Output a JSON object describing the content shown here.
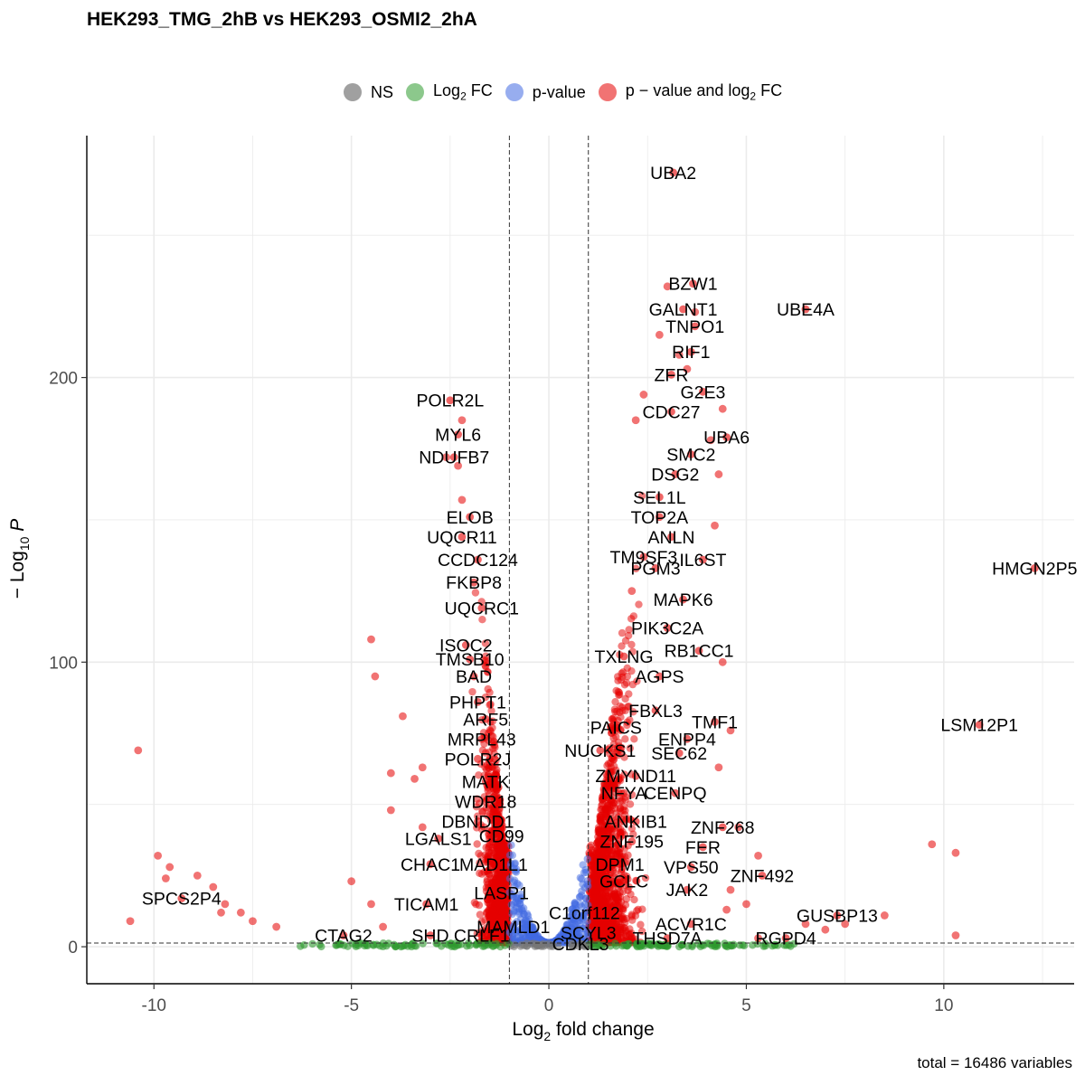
{
  "header": {
    "title": "HEK293_TMG_2hB vs HEK293_OSMI2_2hA",
    "footer": "total = 16486 variables"
  },
  "legend": {
    "items": [
      {
        "label": "NS",
        "color": "#777777"
      },
      {
        "label": "Log",
        "sub": "2",
        "suffix": " FC",
        "color": "#2e9a2e"
      },
      {
        "label": "p-value",
        "color": "#4169e1"
      },
      {
        "label": "p − value and log",
        "sub": "2",
        "suffix": " FC",
        "color": "#e60000"
      }
    ]
  },
  "chart_data": {
    "type": "scatter",
    "title": "HEK293_TMG_2hB vs HEK293_OSMI2_2hA",
    "xlabel": "Log2 fold change",
    "ylabel": "−Log10 P",
    "xlim": [
      -11.7,
      13.3
    ],
    "ylim": [
      -13,
      285
    ],
    "x_ticks": [
      -10,
      -5,
      0,
      5,
      10
    ],
    "y_ticks": [
      0,
      100,
      200
    ],
    "fc_cutoff": 1.0,
    "p_cutoff_y": 1.3,
    "grid": true,
    "legend_position": "top",
    "colors": {
      "NS": "#777777",
      "Log2 FC": "#2e9a2e",
      "p-value": "#4169e1",
      "p - value and log2 FC": "#e60000"
    },
    "labeled_points": [
      {
        "label": "UBA2",
        "x": 3.15,
        "y": 272
      },
      {
        "label": "BZW1",
        "x": 3.65,
        "y": 233
      },
      {
        "label": "GALNT1",
        "x": 3.4,
        "y": 224
      },
      {
        "label": "UBE4A",
        "x": 6.5,
        "y": 224
      },
      {
        "label": "TNPO1",
        "x": 3.7,
        "y": 218
      },
      {
        "label": "RIF1",
        "x": 3.6,
        "y": 209
      },
      {
        "label": "ZFR",
        "x": 3.1,
        "y": 201
      },
      {
        "label": "G2E3",
        "x": 3.9,
        "y": 195
      },
      {
        "label": "POLR2L",
        "x": -2.5,
        "y": 192
      },
      {
        "label": "CDC27",
        "x": 3.1,
        "y": 188
      },
      {
        "label": "UBA6",
        "x": 4.5,
        "y": 179
      },
      {
        "label": "MYL6",
        "x": -2.3,
        "y": 180
      },
      {
        "label": "NDUFB7",
        "x": -2.4,
        "y": 172
      },
      {
        "label": "SMC2",
        "x": 3.6,
        "y": 173
      },
      {
        "label": "DSG2",
        "x": 3.2,
        "y": 166
      },
      {
        "label": "SEL1L",
        "x": 2.8,
        "y": 158
      },
      {
        "label": "ELOB",
        "x": -2.0,
        "y": 151
      },
      {
        "label": "TOP2A",
        "x": 2.8,
        "y": 151
      },
      {
        "label": "UQCR11",
        "x": -2.2,
        "y": 144
      },
      {
        "label": "ANLN",
        "x": 3.1,
        "y": 144
      },
      {
        "label": "CCDC124",
        "x": -1.8,
        "y": 136
      },
      {
        "label": "TM9SF3",
        "x": 2.4,
        "y": 137
      },
      {
        "label": "IL6ST",
        "x": 3.9,
        "y": 136
      },
      {
        "label": "PGM3",
        "x": 2.7,
        "y": 133
      },
      {
        "label": "HMGN2P5",
        "x": 12.3,
        "y": 133
      },
      {
        "label": "FKBP8",
        "x": -1.9,
        "y": 128
      },
      {
        "label": "MAPK6",
        "x": 3.4,
        "y": 122
      },
      {
        "label": "UQCRC1",
        "x": -1.7,
        "y": 119
      },
      {
        "label": "PIK3C2A",
        "x": 3.0,
        "y": 112
      },
      {
        "label": "ISOC2",
        "x": -2.1,
        "y": 106
      },
      {
        "label": "RB1CC1",
        "x": 3.8,
        "y": 104
      },
      {
        "label": "TMSB10",
        "x": -2.0,
        "y": 101
      },
      {
        "label": "TXLNG",
        "x": 1.9,
        "y": 102
      },
      {
        "label": "BAD",
        "x": -1.9,
        "y": 95
      },
      {
        "label": "AGPS",
        "x": 2.8,
        "y": 95
      },
      {
        "label": "PHPT1",
        "x": -1.8,
        "y": 86
      },
      {
        "label": "FBXL3",
        "x": 2.7,
        "y": 83
      },
      {
        "label": "ARF5",
        "x": -1.6,
        "y": 80
      },
      {
        "label": "TMF1",
        "x": 4.2,
        "y": 79
      },
      {
        "label": "LSM12P1",
        "x": 10.9,
        "y": 78
      },
      {
        "label": "PAICS",
        "x": 1.7,
        "y": 77
      },
      {
        "label": "MRPL43",
        "x": -1.7,
        "y": 73
      },
      {
        "label": "ENPP4",
        "x": 3.5,
        "y": 73
      },
      {
        "label": "NUCKS1",
        "x": 1.3,
        "y": 69
      },
      {
        "label": "SEC62",
        "x": 3.3,
        "y": 68
      },
      {
        "label": "POLR2J",
        "x": -1.8,
        "y": 66
      },
      {
        "label": "ZMYND11",
        "x": 2.2,
        "y": 60
      },
      {
        "label": "MATK",
        "x": -1.6,
        "y": 58
      },
      {
        "label": "NFYA",
        "x": 1.9,
        "y": 54
      },
      {
        "label": "CENPQ",
        "x": 3.2,
        "y": 54
      },
      {
        "label": "WDR18",
        "x": -1.6,
        "y": 51
      },
      {
        "label": "DBNDD1",
        "x": -1.8,
        "y": 44
      },
      {
        "label": "ANKIB1",
        "x": 2.2,
        "y": 44
      },
      {
        "label": "ZNF268",
        "x": 4.4,
        "y": 42
      },
      {
        "label": "LGALS1",
        "x": -2.8,
        "y": 38
      },
      {
        "label": "CD99",
        "x": -1.2,
        "y": 39
      },
      {
        "label": "ZNF195",
        "x": 2.1,
        "y": 37
      },
      {
        "label": "FER",
        "x": 3.9,
        "y": 35
      },
      {
        "label": "CHAC1",
        "x": -3.0,
        "y": 29
      },
      {
        "label": "MAD1L1",
        "x": -1.4,
        "y": 29
      },
      {
        "label": "DPM1",
        "x": 1.8,
        "y": 29
      },
      {
        "label": "VPS50",
        "x": 3.6,
        "y": 28
      },
      {
        "label": "ZNF492",
        "x": 5.4,
        "y": 25
      },
      {
        "label": "GCLC",
        "x": 1.9,
        "y": 23
      },
      {
        "label": "JAK2",
        "x": 3.5,
        "y": 20
      },
      {
        "label": "LASP1",
        "x": -1.2,
        "y": 19
      },
      {
        "label": "SPCS2P4",
        "x": -9.3,
        "y": 17
      },
      {
        "label": "TICAM1",
        "x": -3.1,
        "y": 15
      },
      {
        "label": "C1orf112",
        "x": 0.9,
        "y": 12
      },
      {
        "label": "GUSBP13",
        "x": 7.3,
        "y": 11
      },
      {
        "label": "MAMLD1",
        "x": -0.9,
        "y": 7
      },
      {
        "label": "ACVR1C",
        "x": 3.6,
        "y": 8
      },
      {
        "label": "SCYL3",
        "x": 1.0,
        "y": 5
      },
      {
        "label": "CTAG2",
        "x": -5.2,
        "y": 4
      },
      {
        "label": "SHD",
        "x": -3.0,
        "y": 4
      },
      {
        "label": "CRLF1",
        "x": -1.7,
        "y": 4
      },
      {
        "label": "THSD7A",
        "x": 3.0,
        "y": 3
      },
      {
        "label": "RGPD4",
        "x": 6.0,
        "y": 3
      },
      {
        "label": "CDKL3",
        "x": 0.8,
        "y": 1
      }
    ],
    "outlier_points": [
      {
        "x": -10.4,
        "y": 69
      },
      {
        "x": -9.9,
        "y": 32
      },
      {
        "x": -9.6,
        "y": 28
      },
      {
        "x": -9.7,
        "y": 24
      },
      {
        "x": -8.9,
        "y": 25
      },
      {
        "x": -8.5,
        "y": 21
      },
      {
        "x": -8.2,
        "y": 15
      },
      {
        "x": -8.3,
        "y": 12
      },
      {
        "x": -7.8,
        "y": 12
      },
      {
        "x": -7.5,
        "y": 9
      },
      {
        "x": -6.9,
        "y": 7
      },
      {
        "x": -10.6,
        "y": 9
      },
      {
        "x": -4.5,
        "y": 108
      },
      {
        "x": -4.4,
        "y": 95
      },
      {
        "x": -3.7,
        "y": 81
      },
      {
        "x": -4.0,
        "y": 61
      },
      {
        "x": -3.4,
        "y": 59
      },
      {
        "x": -3.2,
        "y": 63
      },
      {
        "x": -4.0,
        "y": 48
      },
      {
        "x": -5.0,
        "y": 23
      },
      {
        "x": -4.5,
        "y": 15
      },
      {
        "x": -4.2,
        "y": 7
      },
      {
        "x": -3.2,
        "y": 42
      },
      {
        "x": 9.7,
        "y": 36
      },
      {
        "x": 10.3,
        "y": 33
      },
      {
        "x": 10.3,
        "y": 4
      },
      {
        "x": 8.5,
        "y": 11
      },
      {
        "x": 7.5,
        "y": 8
      },
      {
        "x": 7.0,
        "y": 6
      },
      {
        "x": 6.5,
        "y": 8
      },
      {
        "x": 5.3,
        "y": 32
      },
      {
        "x": 5.0,
        "y": 15
      },
      {
        "x": 4.8,
        "y": 42
      },
      {
        "x": 4.6,
        "y": 20
      },
      {
        "x": 5.3,
        "y": 3
      },
      {
        "x": 4.5,
        "y": 13
      },
      {
        "x": 4.3,
        "y": 63
      },
      {
        "x": 4.6,
        "y": 76
      },
      {
        "x": 4.4,
        "y": 100
      },
      {
        "x": 4.2,
        "y": 148
      },
      {
        "x": 4.3,
        "y": 166
      },
      {
        "x": 4.4,
        "y": 189
      },
      {
        "x": 4.1,
        "y": 178
      },
      {
        "x": 2.4,
        "y": 194
      },
      {
        "x": 2.2,
        "y": 185
      },
      {
        "x": 3.0,
        "y": 232
      },
      {
        "x": 3.7,
        "y": 223
      },
      {
        "x": 2.8,
        "y": 215
      },
      {
        "x": 3.3,
        "y": 208
      },
      {
        "x": 3.5,
        "y": 203
      },
      {
        "x": 2.1,
        "y": 125
      },
      {
        "x": -2.2,
        "y": 185
      },
      {
        "x": -2.6,
        "y": 172
      },
      {
        "x": -2.3,
        "y": 169
      },
      {
        "x": -2.2,
        "y": 157
      }
    ]
  }
}
